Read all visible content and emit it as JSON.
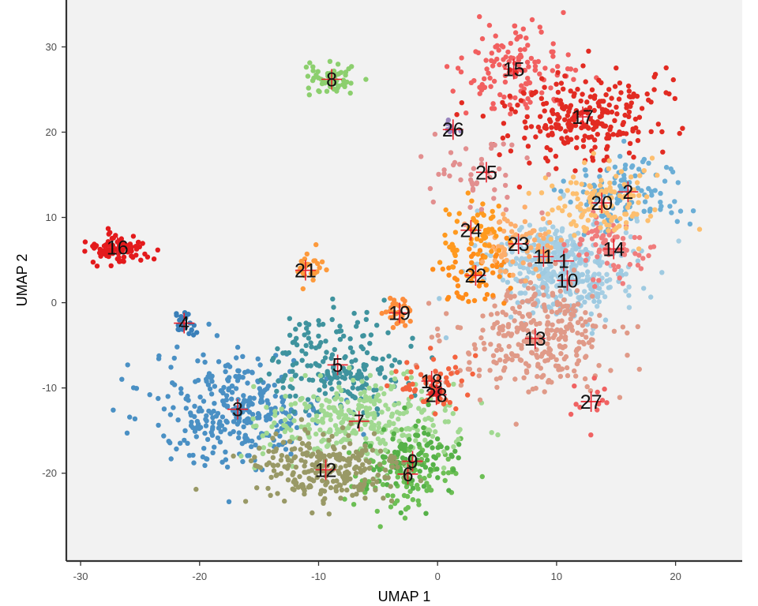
{
  "chart_data": {
    "type": "scatter",
    "title": "",
    "xlabel": "UMAP 1",
    "ylabel": "UMAP 2",
    "xlim": [
      -31.2,
      25.6
    ],
    "ylim": [
      -30.3,
      35.5
    ],
    "x_ticks": [
      -30,
      -20,
      -10,
      0,
      10,
      20
    ],
    "y_ticks": [
      -20,
      -10,
      0,
      10,
      20,
      30
    ],
    "x_tick_labels": [
      "-30",
      "-20",
      "-10",
      "0",
      "10",
      "20"
    ],
    "y_tick_labels": [
      "-20",
      "-10",
      "0",
      "10",
      "20",
      "30"
    ],
    "grid": false,
    "legend": "none",
    "panel_background": "#f2f2f2",
    "centroid_marker_color": "#e8202a",
    "clusters": [
      {
        "label": "1",
        "x": 10.6,
        "y": 4.9,
        "sx": 3.0,
        "sy": 3.0,
        "n": 170,
        "color": "#a6cee3"
      },
      {
        "label": "2",
        "x": 16.0,
        "y": 13.0,
        "sx": 2.5,
        "sy": 2.2,
        "n": 110,
        "color": "#6baed6"
      },
      {
        "label": "3",
        "x": -16.8,
        "y": -12.5,
        "sx": 3.6,
        "sy": 3.3,
        "n": 320,
        "color": "#4a90c4"
      },
      {
        "label": "4",
        "x": -21.3,
        "y": -2.4,
        "sx": 0.5,
        "sy": 0.7,
        "n": 22,
        "color": "#3a7fb8"
      },
      {
        "label": "5",
        "x": -8.4,
        "y": -7.3,
        "sx": 2.8,
        "sy": 3.0,
        "n": 200,
        "color": "#3f939e"
      },
      {
        "label": "6",
        "x": -2.5,
        "y": -20.1,
        "sx": 2.4,
        "sy": 2.2,
        "n": 120,
        "color": "#6cbf55"
      },
      {
        "label": "7",
        "x": -6.6,
        "y": -13.9,
        "sx": 4.0,
        "sy": 2.4,
        "n": 300,
        "color": "#a1d991"
      },
      {
        "label": "8",
        "x": -8.9,
        "y": 26.2,
        "sx": 1.1,
        "sy": 0.9,
        "n": 60,
        "color": "#8ccf6e"
      },
      {
        "label": "9",
        "x": -2.1,
        "y": -18.6,
        "sx": 2.0,
        "sy": 2.0,
        "n": 90,
        "color": "#55b148"
      },
      {
        "label": "10",
        "x": 10.9,
        "y": 2.6,
        "sx": 2.6,
        "sy": 2.4,
        "n": 170,
        "color": "#9ecae1"
      },
      {
        "label": "11",
        "x": 8.9,
        "y": 5.4,
        "sx": 2.2,
        "sy": 2.0,
        "n": 110,
        "color": "#a6cee3"
      },
      {
        "label": "12",
        "x": -9.4,
        "y": -19.6,
        "sx": 3.4,
        "sy": 2.3,
        "n": 250,
        "color": "#999966"
      },
      {
        "label": "13",
        "x": 8.2,
        "y": -4.2,
        "sx": 3.3,
        "sy": 3.1,
        "n": 300,
        "color": "#e09a88"
      },
      {
        "label": "14",
        "x": 14.8,
        "y": 6.3,
        "sx": 1.8,
        "sy": 2.0,
        "n": 70,
        "color": "#f07c7c"
      },
      {
        "label": "15",
        "x": 6.4,
        "y": 27.4,
        "sx": 2.2,
        "sy": 2.4,
        "n": 130,
        "color": "#f26060"
      },
      {
        "label": "16",
        "x": -26.9,
        "y": 6.5,
        "sx": 1.3,
        "sy": 0.9,
        "n": 90,
        "color": "#e31a1c"
      },
      {
        "label": "17",
        "x": 12.2,
        "y": 21.8,
        "sx": 3.2,
        "sy": 2.8,
        "n": 260,
        "color": "#e22b22"
      },
      {
        "label": "18",
        "x": -0.5,
        "y": -9.2,
        "sx": 1.6,
        "sy": 1.5,
        "n": 60,
        "color": "#f4633f"
      },
      {
        "label": "19",
        "x": -3.2,
        "y": -1.2,
        "sx": 0.7,
        "sy": 1.0,
        "n": 30,
        "color": "#fd8d3c"
      },
      {
        "label": "20",
        "x": 13.8,
        "y": 11.7,
        "sx": 2.2,
        "sy": 2.3,
        "n": 120,
        "color": "#fdbf6f"
      },
      {
        "label": "21",
        "x": -11.1,
        "y": 3.8,
        "sx": 0.7,
        "sy": 1.0,
        "n": 25,
        "color": "#fd9a3c"
      },
      {
        "label": "22",
        "x": 3.2,
        "y": 3.2,
        "sx": 1.3,
        "sy": 2.0,
        "n": 60,
        "color": "#ff8c1a"
      },
      {
        "label": "23",
        "x": 6.8,
        "y": 6.9,
        "sx": 1.8,
        "sy": 1.8,
        "n": 70,
        "color": "#fdae6b"
      },
      {
        "label": "24",
        "x": 2.8,
        "y": 8.5,
        "sx": 1.4,
        "sy": 1.9,
        "n": 60,
        "color": "#ff9a1f"
      },
      {
        "label": "25",
        "x": 4.1,
        "y": 15.3,
        "sx": 2.2,
        "sy": 2.2,
        "n": 45,
        "color": "#e28f8f"
      },
      {
        "label": "26",
        "x": 1.3,
        "y": 20.3,
        "sx": 0.3,
        "sy": 0.5,
        "n": 8,
        "color": "#9a86bf"
      },
      {
        "label": "27",
        "x": 12.9,
        "y": -11.6,
        "sx": 1.0,
        "sy": 1.5,
        "n": 12,
        "color": "#f06262"
      },
      {
        "label": "28",
        "x": -0.1,
        "y": -10.8,
        "sx": 0.3,
        "sy": 0.5,
        "n": 8,
        "color": "#d62728"
      }
    ]
  }
}
